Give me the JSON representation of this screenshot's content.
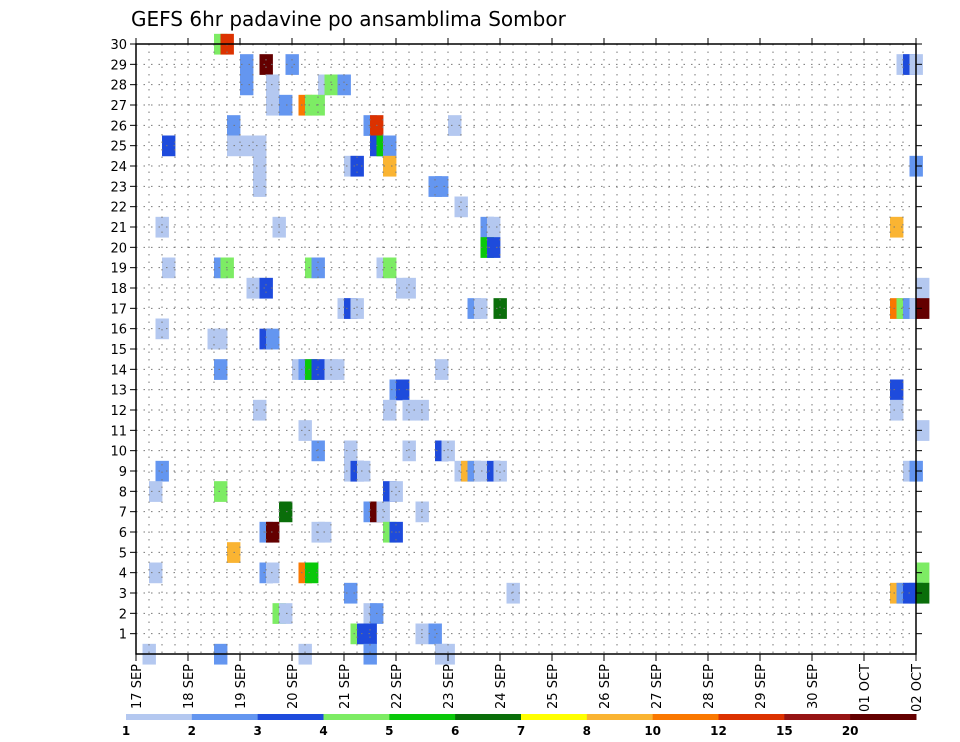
{
  "chart_data": {
    "type": "heatmap",
    "title": "GEFS 6hr padavine po ansamblima Sombor",
    "xlabel": "",
    "ylabel": "",
    "x_tick_labels": [
      "17 SEP",
      "18 SEP",
      "19 SEP",
      "20 SEP",
      "21 SEP",
      "22 SEP",
      "23 SEP",
      "24 SEP",
      "25 SEP",
      "26 SEP",
      "27 SEP",
      "28 SEP",
      "29 SEP",
      "30 SEP",
      "01 OCT",
      "02 OCT"
    ],
    "x_range_steps": [
      0,
      60
    ],
    "y_tick_labels": [
      1,
      2,
      3,
      4,
      5,
      6,
      7,
      8,
      9,
      10,
      11,
      12,
      13,
      14,
      15,
      16,
      17,
      18,
      19,
      20,
      21,
      22,
      23,
      24,
      25,
      26,
      27,
      28,
      29,
      30
    ],
    "y_range": [
      0,
      30
    ],
    "grid": true,
    "colorbar": {
      "levels": [
        "1",
        "2",
        "3",
        "4",
        "5",
        "6",
        "7",
        "8",
        "10",
        "12",
        "15",
        "20"
      ],
      "colors": [
        "#b4c8f0",
        "#6496f0",
        "#1e4bdc",
        "#7dec64",
        "#0ac80a",
        "#0a6e0a",
        "#ffff00",
        "#fab432",
        "#fa7800",
        "#dc3200",
        "#961414",
        "#640000"
      ]
    },
    "cells_note": "each cell: [time_step (6h steps from 17 SEP 00Z), member, precip]",
    "cells": [
      [
        6,
        30,
        4.5
      ],
      [
        6.5,
        30,
        14
      ],
      [
        8,
        29,
        2.5
      ],
      [
        9.5,
        29,
        20
      ],
      [
        11.5,
        29,
        2.5
      ],
      [
        58.5,
        29,
        1.5
      ],
      [
        59,
        29,
        3
      ],
      [
        59.5,
        29,
        1.5
      ],
      [
        8,
        28,
        2.5
      ],
      [
        10,
        28,
        1.5
      ],
      [
        14,
        28,
        1.5
      ],
      [
        14.5,
        28,
        4.5
      ],
      [
        15.5,
        28,
        2.5
      ],
      [
        10,
        27,
        1.5
      ],
      [
        11,
        27,
        2.5
      ],
      [
        12.5,
        27,
        10
      ],
      [
        13,
        27,
        4.5
      ],
      [
        13.5,
        27,
        4.5
      ],
      [
        7,
        26,
        2.5
      ],
      [
        17.5,
        26,
        2.5
      ],
      [
        18,
        26,
        14
      ],
      [
        24,
        26,
        1.5
      ],
      [
        2,
        25,
        3
      ],
      [
        7,
        25,
        1.5
      ],
      [
        8,
        25,
        1.5
      ],
      [
        9,
        25,
        1.5
      ],
      [
        18,
        25,
        3
      ],
      [
        18.5,
        25,
        5
      ],
      [
        19,
        25,
        2.5
      ],
      [
        9,
        24,
        1.5
      ],
      [
        16,
        24,
        1.5
      ],
      [
        16.5,
        24,
        3
      ],
      [
        19,
        24,
        8
      ],
      [
        59.5,
        24,
        2.5
      ],
      [
        9,
        23,
        1.5
      ],
      [
        22.5,
        23,
        2.5
      ],
      [
        23,
        23,
        2.5
      ],
      [
        24.5,
        22,
        1.5
      ],
      [
        1.5,
        21,
        1.5
      ],
      [
        10.5,
        21,
        1.5
      ],
      [
        26.5,
        21,
        2.5
      ],
      [
        27,
        21,
        1.5
      ],
      [
        58,
        21,
        8
      ],
      [
        26.5,
        20,
        5.5
      ],
      [
        27,
        20,
        3
      ],
      [
        2,
        19,
        1.5
      ],
      [
        6,
        19,
        2.5
      ],
      [
        6.5,
        19,
        4.5
      ],
      [
        13,
        19,
        4.5
      ],
      [
        13.5,
        19,
        2.5
      ],
      [
        18.5,
        19,
        1.5
      ],
      [
        19,
        19,
        4.5
      ],
      [
        8.5,
        18,
        1.5
      ],
      [
        9,
        18,
        1.5
      ],
      [
        9.5,
        18,
        3
      ],
      [
        20,
        18,
        1.5
      ],
      [
        20.5,
        18,
        1.5
      ],
      [
        60,
        18,
        1.5
      ],
      [
        15.5,
        17,
        1.5
      ],
      [
        16,
        17,
        3
      ],
      [
        16.5,
        17,
        1.5
      ],
      [
        25.5,
        17,
        2.5
      ],
      [
        26,
        17,
        1.5
      ],
      [
        27.5,
        17,
        6.5
      ],
      [
        58,
        17,
        10
      ],
      [
        58.5,
        17,
        4.5
      ],
      [
        59,
        17,
        2.5
      ],
      [
        59.5,
        17,
        1.5
      ],
      [
        60,
        17,
        20
      ],
      [
        1.5,
        16,
        1.5
      ],
      [
        5.5,
        15.5,
        1.5
      ],
      [
        6,
        15.5,
        1.5
      ],
      [
        9.5,
        15.5,
        3
      ],
      [
        10,
        15.5,
        2.5
      ],
      [
        6,
        14,
        2.5
      ],
      [
        12,
        14,
        1.5
      ],
      [
        12.5,
        14,
        2.5
      ],
      [
        13,
        14,
        5
      ],
      [
        13.5,
        14,
        3
      ],
      [
        14.5,
        14,
        1.5
      ],
      [
        15,
        14,
        1.5
      ],
      [
        23,
        14,
        1.5
      ],
      [
        19.5,
        13,
        2.5
      ],
      [
        20,
        13,
        3
      ],
      [
        58,
        13,
        3
      ],
      [
        9,
        12,
        1.5
      ],
      [
        19,
        12,
        1.5
      ],
      [
        20.5,
        12,
        1.5
      ],
      [
        21.5,
        12,
        1.5
      ],
      [
        58,
        12,
        1.5
      ],
      [
        12.5,
        11,
        1.5
      ],
      [
        60,
        11,
        1.5
      ],
      [
        13.5,
        10,
        2.5
      ],
      [
        16,
        10,
        1.5
      ],
      [
        20.5,
        10,
        1.5
      ],
      [
        23,
        10,
        3
      ],
      [
        23.5,
        10,
        1.5
      ],
      [
        1.5,
        9,
        2.5
      ],
      [
        16,
        9,
        1.5
      ],
      [
        16.5,
        9,
        3
      ],
      [
        17,
        9,
        1.5
      ],
      [
        24.5,
        9,
        1.5
      ],
      [
        25,
        9,
        8
      ],
      [
        25.5,
        9,
        2.5
      ],
      [
        26,
        9,
        1.5
      ],
      [
        27,
        9,
        3
      ],
      [
        27.5,
        9,
        1.5
      ],
      [
        59,
        9,
        1.5
      ],
      [
        59.5,
        9,
        2.5
      ],
      [
        1,
        8,
        1.5
      ],
      [
        6,
        8,
        4.5
      ],
      [
        19,
        8,
        3
      ],
      [
        19.5,
        8,
        1.5
      ],
      [
        11,
        7,
        6
      ],
      [
        17.5,
        7,
        2.5
      ],
      [
        18,
        7,
        20
      ],
      [
        18.5,
        7,
        1.5
      ],
      [
        21.5,
        7,
        1.5
      ],
      [
        9.5,
        6,
        2.5
      ],
      [
        10,
        6,
        20
      ],
      [
        13.5,
        6,
        1.5
      ],
      [
        14,
        6,
        1.5
      ],
      [
        19,
        6,
        4.5
      ],
      [
        19.5,
        6,
        3
      ],
      [
        7,
        5,
        8
      ],
      [
        1,
        4,
        1.5
      ],
      [
        9.5,
        4,
        2.5
      ],
      [
        10,
        4,
        1.5
      ],
      [
        12.5,
        4,
        10
      ],
      [
        13,
        4,
        5
      ],
      [
        60,
        4,
        4.5
      ],
      [
        16,
        3,
        2.5
      ],
      [
        28.5,
        3,
        1.5
      ],
      [
        58,
        3,
        8
      ],
      [
        58.5,
        3,
        2.5
      ],
      [
        59,
        3,
        3
      ],
      [
        59.5,
        3,
        3
      ],
      [
        60,
        3,
        6
      ],
      [
        10.5,
        2,
        4.5
      ],
      [
        11,
        2,
        1.5
      ],
      [
        17.5,
        2,
        1.5
      ],
      [
        18,
        2,
        2.5
      ],
      [
        16.5,
        1,
        4.5
      ],
      [
        17,
        1,
        3
      ],
      [
        17.5,
        1,
        3
      ],
      [
        21.5,
        1,
        1.5
      ],
      [
        22.5,
        1,
        2.5
      ],
      [
        0.5,
        0,
        1.5
      ],
      [
        6,
        0,
        2.5
      ],
      [
        12.5,
        0,
        1.5
      ],
      [
        17.5,
        0,
        2.5
      ],
      [
        23,
        0,
        1.5
      ],
      [
        23.5,
        0,
        1.5
      ]
    ]
  }
}
